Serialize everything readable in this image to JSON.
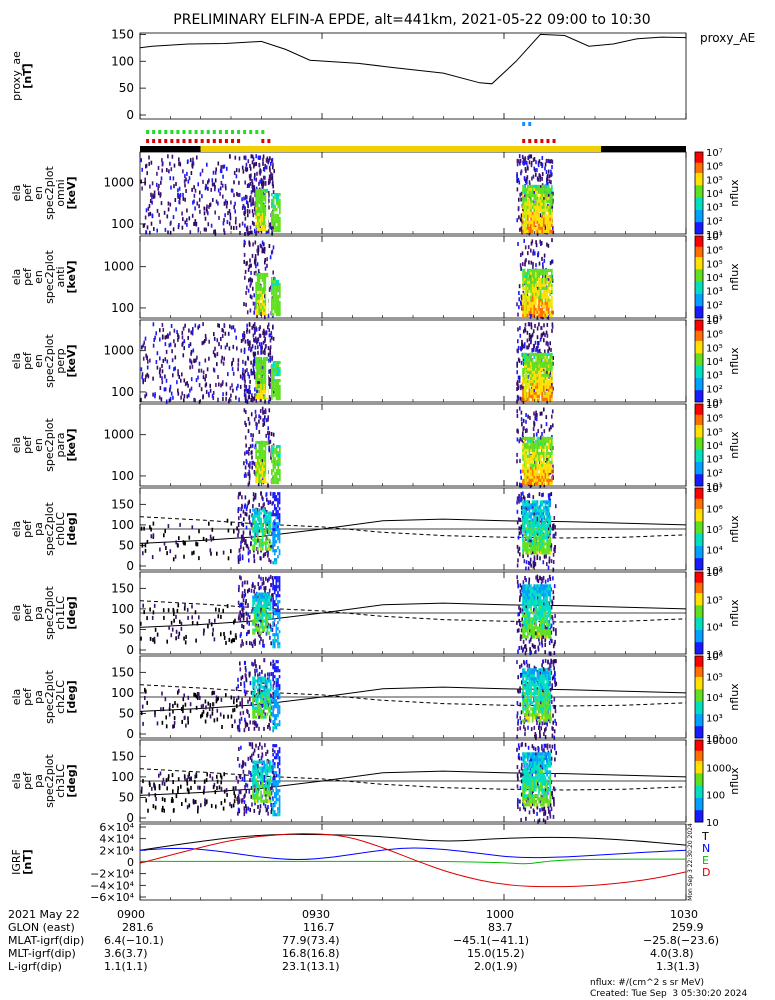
{
  "title": "PRELIMINARY ELFIN-A EPDE, alt=441km, 2021-05-22 09:00 to 10:30",
  "chart_data": [
    {
      "type": "line",
      "name": "proxy_ae",
      "legend": "proxy_AE",
      "ylabel": [
        "proxy_ae",
        "[nT]"
      ],
      "ylim": [
        0,
        160
      ],
      "yticks": [
        "0",
        "50",
        "100",
        "150"
      ],
      "x": [
        0,
        2,
        8,
        14,
        20,
        24,
        28,
        36,
        42,
        50,
        56,
        58,
        62,
        66,
        70,
        74,
        78,
        82,
        86,
        90
      ],
      "y": [
        125,
        128,
        132,
        133,
        137,
        122,
        102,
        96,
        88,
        78,
        60,
        58,
        100,
        150,
        148,
        128,
        132,
        142,
        145,
        144
      ],
      "color": "#000000"
    },
    {
      "type": "heatmap",
      "name": "energy-spectrogram-omni",
      "ylabel": [
        "ela",
        "pef",
        "en",
        "spec2plot",
        "omni",
        "[keV]"
      ],
      "yticks": [
        "100",
        "1000"
      ],
      "colorbar": {
        "label": "nflux",
        "ticks": [
          "10¹",
          "10²",
          "10³",
          "10⁴",
          "10⁵",
          "10⁶",
          "10⁷"
        ]
      }
    },
    {
      "type": "heatmap",
      "name": "energy-spectrogram-anti",
      "ylabel": [
        "ela",
        "pef",
        "en",
        "spec2plot",
        "anti",
        "[keV]"
      ],
      "yticks": [
        "100",
        "1000"
      ],
      "colorbar": {
        "label": "nflux",
        "ticks": [
          "10¹",
          "10²",
          "10³",
          "10⁴",
          "10⁵",
          "10⁶",
          "10⁷"
        ]
      }
    },
    {
      "type": "heatmap",
      "name": "energy-spectrogram-perp",
      "ylabel": [
        "ela",
        "pef",
        "en",
        "spec2plot",
        "perp",
        "[keV]"
      ],
      "yticks": [
        "100",
        "1000"
      ],
      "colorbar": {
        "label": "nflux",
        "ticks": [
          "10¹",
          "10²",
          "10³",
          "10⁴",
          "10⁵",
          "10⁶",
          "10⁷"
        ]
      }
    },
    {
      "type": "heatmap",
      "name": "energy-spectrogram-para",
      "ylabel": [
        "ela",
        "pef",
        "en",
        "spec2plot",
        "para",
        "[keV]"
      ],
      "yticks": [
        "100",
        "1000"
      ],
      "colorbar": {
        "label": "nflux",
        "ticks": [
          "10¹",
          "10²",
          "10³",
          "10⁴",
          "10⁵",
          "10⁶",
          "10⁷"
        ]
      }
    },
    {
      "type": "heatmap",
      "name": "pitch-angle-ch0",
      "ylabel": [
        "ela",
        "pef",
        "pa",
        "spec2plot",
        "ch0LC",
        "[deg]"
      ],
      "yticks": [
        "0",
        "50",
        "100",
        "150"
      ],
      "colorbar": {
        "label": "nflux",
        "ticks": [
          "10³",
          "10⁴",
          "10⁵",
          "10⁶",
          "10⁷"
        ]
      }
    },
    {
      "type": "heatmap",
      "name": "pitch-angle-ch1",
      "ylabel": [
        "ela",
        "pef",
        "pa",
        "spec2plot",
        "ch1LC",
        "[deg]"
      ],
      "yticks": [
        "0",
        "50",
        "100",
        "150"
      ],
      "colorbar": {
        "label": "nflux",
        "ticks": [
          "10³",
          "10⁴",
          "10⁵",
          "10⁶"
        ]
      }
    },
    {
      "type": "heatmap",
      "name": "pitch-angle-ch2",
      "ylabel": [
        "ela",
        "pef",
        "pa",
        "spec2plot",
        "ch2LC",
        "[deg]"
      ],
      "yticks": [
        "0",
        "50",
        "100",
        "150"
      ],
      "colorbar": {
        "label": "nflux",
        "ticks": [
          "10²",
          "10³",
          "10⁴",
          "10⁵",
          "10⁶"
        ]
      }
    },
    {
      "type": "heatmap",
      "name": "pitch-angle-ch3",
      "ylabel": [
        "ela",
        "pef",
        "pa",
        "spec2plot",
        "ch3LC",
        "[deg]"
      ],
      "yticks": [
        "0",
        "50",
        "100",
        "150"
      ],
      "colorbar": {
        "label": "nflux",
        "ticks": [
          "10",
          "100",
          "1000",
          "10000"
        ]
      }
    },
    {
      "type": "line",
      "name": "igrf",
      "ylabel": [
        "IGRF",
        "[nT]"
      ],
      "ylim": [
        -60000,
        60000
      ],
      "yticks": [
        "−6×10⁴",
        "−4×10⁴",
        "−2×10⁴",
        "0",
        "2×10⁴",
        "4×10⁴",
        "6×10⁴"
      ],
      "side_stamp": "Mon Sep  3 22:30:20 2024",
      "series": [
        {
          "name": "T",
          "color": "#000000",
          "x": [
            0,
            10,
            20,
            30,
            40,
            50,
            60,
            70,
            80,
            90
          ],
          "y": [
            20000,
            36000,
            47000,
            47500,
            44000,
            34000,
            41000,
            43000,
            38000,
            29000
          ]
        },
        {
          "name": "N",
          "color": "#0000ff",
          "x": [
            0,
            6,
            12,
            20,
            26,
            32,
            38,
            44,
            50,
            56,
            62,
            70,
            80,
            90
          ],
          "y": [
            20000,
            25000,
            20000,
            8000,
            3000,
            8000,
            18000,
            25000,
            22000,
            15000,
            7000,
            8000,
            15000,
            20000
          ]
        },
        {
          "name": "E",
          "color": "#00bb00",
          "x": [
            0,
            10,
            20,
            30,
            40,
            50,
            60,
            64,
            68,
            76,
            90
          ],
          "y": [
            1000,
            1000,
            1000,
            1000,
            1000,
            1000,
            -1000,
            -4000,
            3000,
            5000,
            5000
          ]
        },
        {
          "name": "D",
          "color": "#dd0000",
          "x": [
            0,
            8,
            16,
            24,
            28,
            34,
            40,
            46,
            52,
            60,
            68,
            76,
            84,
            90
          ],
          "y": [
            -2000,
            20000,
            40000,
            48000,
            49000,
            45000,
            25000,
            0,
            -22000,
            -40000,
            -43000,
            -40000,
            -30000,
            -17000
          ]
        }
      ]
    }
  ],
  "xaxis": {
    "ticks": [
      "0900",
      "0930",
      "1000",
      "1030"
    ],
    "date_label": "2021 May 22",
    "rows": [
      {
        "label": "GLON (east)",
        "values": [
          "281.6",
          "116.7",
          "83.7",
          "259.9"
        ]
      },
      {
        "label": "MLAT-igrf(dip)",
        "values": [
          "6.4(−10.1)",
          "77.9(73.4)",
          "−45.1(−41.1)",
          "−25.8(−23.6)"
        ]
      },
      {
        "label": "MLT-igrf(dip)",
        "values": [
          "3.6(3.7)",
          "16.8(16.8)",
          "15.0(15.2)",
          "4.0(3.8)"
        ]
      },
      {
        "label": "L-igrf(dip)",
        "values": [
          "1.1(1.1)",
          "23.1(13.1)",
          "2.0(1.9)",
          "1.3(1.3)"
        ]
      }
    ]
  },
  "footer": {
    "units": "nflux: #/(cm^2 s sr MeV)",
    "created": "Created: Tue Sep  3 05:30:20 2024"
  }
}
